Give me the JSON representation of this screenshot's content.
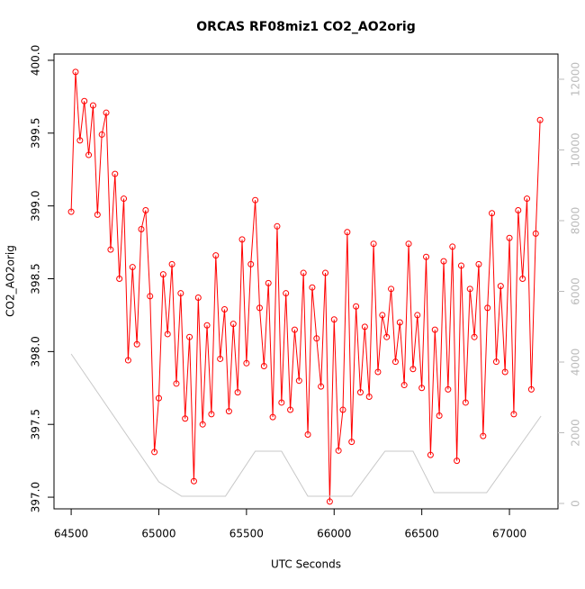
{
  "chart_data": {
    "type": "scatter",
    "title": "ORCAS RF08miz1 CO2_AO2orig",
    "xlabel": "UTC Seconds",
    "ylabel": "CO2_AO2orig",
    "x": [
      64500,
      64525,
      64550,
      64575,
      64600,
      64625,
      64650,
      64675,
      64700,
      64725,
      64750,
      64775,
      64800,
      64825,
      64850,
      64875,
      64900,
      64925,
      64950,
      64975,
      65000,
      65025,
      65050,
      65075,
      65100,
      65125,
      65150,
      65175,
      65200,
      65225,
      65250,
      65275,
      65300,
      65325,
      65350,
      65375,
      65400,
      65425,
      65450,
      65475,
      65500,
      65525,
      65550,
      65575,
      65600,
      65625,
      65650,
      65675,
      65700,
      65725,
      65750,
      65775,
      65800,
      65825,
      65850,
      65875,
      65900,
      65925,
      65950,
      65975,
      66000,
      66025,
      66050,
      66075,
      66100,
      66125,
      66150,
      66175,
      66200,
      66225,
      66250,
      66275,
      66300,
      66325,
      66350,
      66375,
      66400,
      66425,
      66450,
      66475,
      66500,
      66525,
      66550,
      66575,
      66600,
      66625,
      66650,
      66675,
      66700,
      66725,
      66750,
      66775,
      66800,
      66825,
      66850,
      66875,
      66900,
      66925,
      66950,
      66975,
      67000,
      67025,
      67050,
      67075,
      67100,
      67125,
      67150,
      67175
    ],
    "series": [
      {
        "name": "CO2_AO2orig",
        "color": "#ff0000",
        "values": [
          398.96,
          399.92,
          399.45,
          399.72,
          399.35,
          399.69,
          398.94,
          399.49,
          399.64,
          398.7,
          399.22,
          398.5,
          399.05,
          397.94,
          398.58,
          398.05,
          398.84,
          398.97,
          398.38,
          397.31,
          397.68,
          398.53,
          398.12,
          398.6,
          397.78,
          398.4,
          397.54,
          398.1,
          397.11,
          398.37,
          397.5,
          398.18,
          397.57,
          398.66,
          397.95,
          398.29,
          397.59,
          398.19,
          397.72,
          398.77,
          397.92,
          398.6,
          399.04,
          398.3,
          397.9,
          398.47,
          397.55,
          398.86,
          397.65,
          398.4,
          397.6,
          398.15,
          397.8,
          398.54,
          397.43,
          398.44,
          398.09,
          397.76,
          398.54,
          396.97,
          398.22,
          397.32,
          397.6,
          398.82,
          397.38,
          398.31,
          397.72,
          398.17,
          397.69,
          398.74,
          397.86,
          398.25,
          398.1,
          398.43,
          397.93,
          398.2,
          397.77,
          398.74,
          397.88,
          398.25,
          397.75,
          398.65,
          397.29,
          398.15,
          397.56,
          398.62,
          397.74,
          398.72,
          397.25,
          398.59,
          397.65,
          398.43,
          398.1,
          398.6,
          397.42,
          398.3,
          398.95,
          397.93,
          398.45,
          397.86,
          398.78,
          397.57,
          398.97,
          398.5,
          399.05,
          397.74,
          398.81,
          399.59
        ]
      },
      {
        "color": "#c8c8c8",
        "axis": "y2",
        "x": [
          64500,
          65000,
          65130,
          65380,
          65550,
          65700,
          65850,
          66100,
          66290,
          66450,
          66570,
          66870,
          67180
        ],
        "values": [
          4229,
          611,
          204,
          204,
          1478,
          1478,
          204,
          204,
          1478,
          1478,
          306,
          306,
          2471
        ]
      }
    ],
    "xlim": [
      64402,
      67277
    ],
    "xticks": [
      64500,
      65000,
      65500,
      66000,
      66500,
      67000
    ],
    "ylim": [
      396.92,
      400.043
    ],
    "yticks": [
      {
        "value": 397,
        "label": "397.0"
      },
      397.5,
      {
        "value": 398,
        "label": "398.0"
      },
      398.5,
      {
        "value": 399,
        "label": "399.0"
      },
      399.5,
      {
        "value": 400,
        "label": "400.0"
      }
    ],
    "y2lim": [
      -153,
      12713
    ],
    "y2ticks": [
      0,
      2000,
      4000,
      6000,
      8000,
      10000,
      12000
    ],
    "y2color": "#bbbbbb"
  }
}
